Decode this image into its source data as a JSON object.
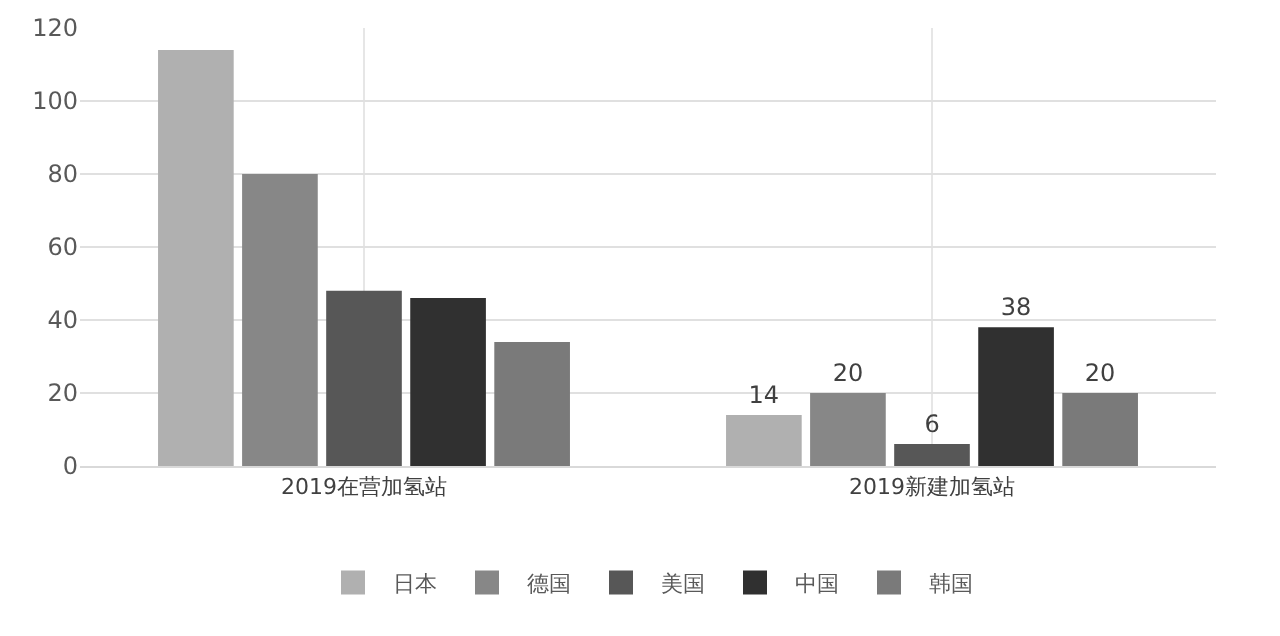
{
  "chart_data": {
    "type": "bar",
    "categories": [
      "2019在营加氢站",
      "2019新建加氢站"
    ],
    "series": [
      {
        "name": "日本",
        "color": "#b0b0b0",
        "values": [
          114,
          14
        ],
        "value_labels": [
          null,
          "14"
        ]
      },
      {
        "name": "德国",
        "color": "#878787",
        "values": [
          80,
          20
        ],
        "value_labels": [
          null,
          "20"
        ]
      },
      {
        "name": "美国",
        "color": "#575757",
        "values": [
          48,
          6
        ],
        "value_labels": [
          null,
          "6"
        ]
      },
      {
        "name": "中国",
        "color": "#303030",
        "values": [
          46,
          38
        ],
        "value_labels": [
          null,
          "38"
        ]
      },
      {
        "name": "韩国",
        "color": "#7a7a7a",
        "values": [
          34,
          20
        ],
        "value_labels": [
          null,
          "20"
        ]
      }
    ],
    "ylim": [
      0,
      120
    ],
    "yticks": [
      0,
      20,
      40,
      60,
      80,
      100,
      120
    ],
    "grid": true,
    "legend": "bottom"
  }
}
